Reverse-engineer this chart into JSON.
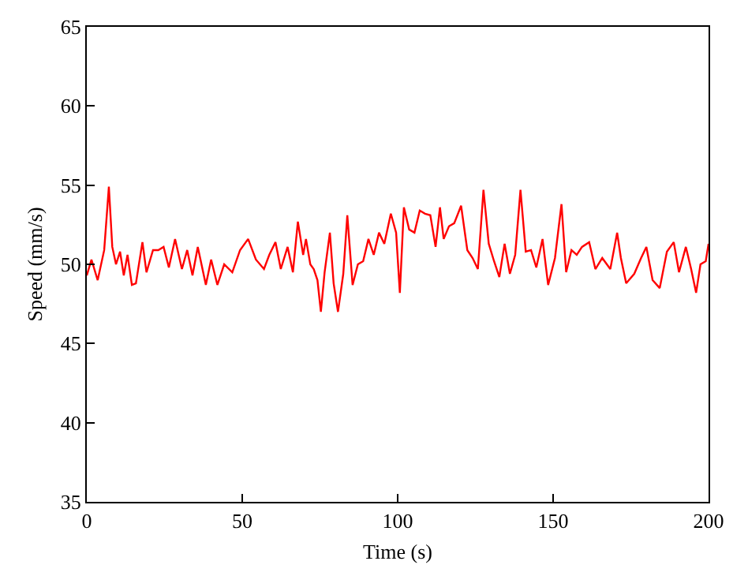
{
  "chart_data": {
    "type": "line",
    "xlabel": "Time (s)",
    "ylabel": "Speed (mm/s)",
    "xlim": [
      0,
      200
    ],
    "xticks": [
      0,
      50,
      100,
      150,
      200
    ],
    "ylim": [
      35,
      65
    ],
    "yticks": [
      35,
      40,
      45,
      50,
      55,
      60,
      65
    ],
    "grid": false,
    "marker": "none",
    "line_style": "solid",
    "series": [
      {
        "color": "#ff0000",
        "x": [
          0,
          1.5,
          3.5,
          5.6,
          7.1,
          8.2,
          9.4,
          10.7,
          11.9,
          13.1,
          14.5,
          15.8,
          17.9,
          19.2,
          21.3,
          23,
          24.7,
          26.4,
          28.4,
          30.6,
          32.3,
          34,
          35.7,
          38.3,
          40,
          42,
          44.2,
          46.8,
          49.3,
          51.9,
          54.4,
          57,
          58.7,
          60.7,
          62.4,
          64.6,
          66.3,
          67.9,
          69.6,
          70.5,
          71.9,
          73,
          74.2,
          75.3,
          76.5,
          78.2,
          79.4,
          80.8,
          82.5,
          83.8,
          85.5,
          87.2,
          88.9,
          90.6,
          92.3,
          94,
          95.7,
          97.8,
          99.5,
          100.7,
          102,
          103.7,
          105.4,
          107.1,
          108.8,
          110.5,
          112.2,
          113.6,
          114.8,
          116.5,
          118.2,
          120.4,
          122.4,
          124.1,
          125.8,
          127.6,
          129.3,
          131,
          132.7,
          134.4,
          136.1,
          137.8,
          139.5,
          141.2,
          142.9,
          144.6,
          146.6,
          148.4,
          150.6,
          152.7,
          154.2,
          155.9,
          157.6,
          159.3,
          161.6,
          163.6,
          165.8,
          168.4,
          170.6,
          171.8,
          173.5,
          176.1,
          178.3,
          180,
          182,
          184.3,
          186.6,
          188.8,
          190.5,
          192.7,
          194.4,
          196,
          197.4,
          199.1,
          200
        ],
        "values": [
          49.3,
          50.3,
          49,
          50.9,
          54.9,
          51.1,
          50,
          50.8,
          49.3,
          50.6,
          48.7,
          48.8,
          51.4,
          49.5,
          50.9,
          50.9,
          51.1,
          49.8,
          51.6,
          49.7,
          50.9,
          49.3,
          51.1,
          48.7,
          50.3,
          48.7,
          50,
          49.5,
          50.9,
          51.6,
          50.3,
          49.7,
          50.6,
          51.4,
          49.7,
          51.1,
          49.5,
          52.7,
          50.6,
          51.6,
          50,
          49.7,
          49,
          47,
          49.5,
          52,
          48.8,
          47,
          49.4,
          53.1,
          48.7,
          50,
          50.2,
          51.6,
          50.6,
          52,
          51.3,
          53.2,
          52,
          48.2,
          53.6,
          52.2,
          52,
          53.4,
          53.2,
          53.1,
          51.1,
          53.6,
          51.6,
          52.4,
          52.6,
          53.7,
          50.9,
          50.4,
          49.7,
          54.7,
          51.3,
          50.2,
          49.2,
          51.3,
          49.4,
          50.6,
          54.7,
          50.8,
          50.9,
          49.8,
          51.6,
          48.7,
          50.4,
          53.8,
          49.5,
          50.9,
          50.6,
          51.1,
          51.4,
          49.7,
          50.4,
          49.7,
          52,
          50.4,
          48.8,
          49.4,
          50.4,
          51.1,
          49,
          48.5,
          50.8,
          51.4,
          49.5,
          51.1,
          49.7,
          48.2,
          50,
          50.2,
          51.3
        ]
      }
    ]
  }
}
